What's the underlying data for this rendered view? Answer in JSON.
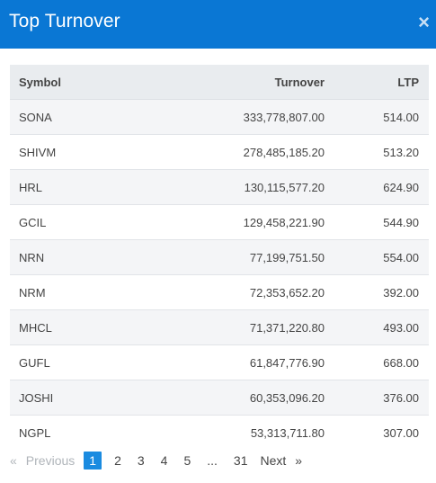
{
  "header": {
    "title": "Top Turnover",
    "close_glyph": "×"
  },
  "table": {
    "columns": [
      "Symbol",
      "Turnover",
      "LTP"
    ],
    "rows": [
      {
        "symbol": "SONA",
        "turnover": "333,778,807.00",
        "ltp": "514.00"
      },
      {
        "symbol": "SHIVM",
        "turnover": "278,485,185.20",
        "ltp": "513.20"
      },
      {
        "symbol": "HRL",
        "turnover": "130,115,577.20",
        "ltp": "624.90"
      },
      {
        "symbol": "GCIL",
        "turnover": "129,458,221.90",
        "ltp": "544.90"
      },
      {
        "symbol": "NRN",
        "turnover": "77,199,751.50",
        "ltp": "554.00"
      },
      {
        "symbol": "NRM",
        "turnover": "72,353,652.20",
        "ltp": "392.00"
      },
      {
        "symbol": "MHCL",
        "turnover": "71,371,220.80",
        "ltp": "493.00"
      },
      {
        "symbol": "GUFL",
        "turnover": "61,847,776.90",
        "ltp": "668.00"
      },
      {
        "symbol": "JOSHI",
        "turnover": "60,353,096.20",
        "ltp": "376.00"
      },
      {
        "symbol": "NGPL",
        "turnover": "53,313,711.80",
        "ltp": "307.00"
      }
    ]
  },
  "pagination": {
    "prev_arrow": "«",
    "prev_label": "Previous",
    "pages": [
      "1",
      "2",
      "3",
      "4",
      "5",
      "...",
      "31"
    ],
    "active_page": "1",
    "next_label": "Next",
    "next_arrow": "»"
  }
}
